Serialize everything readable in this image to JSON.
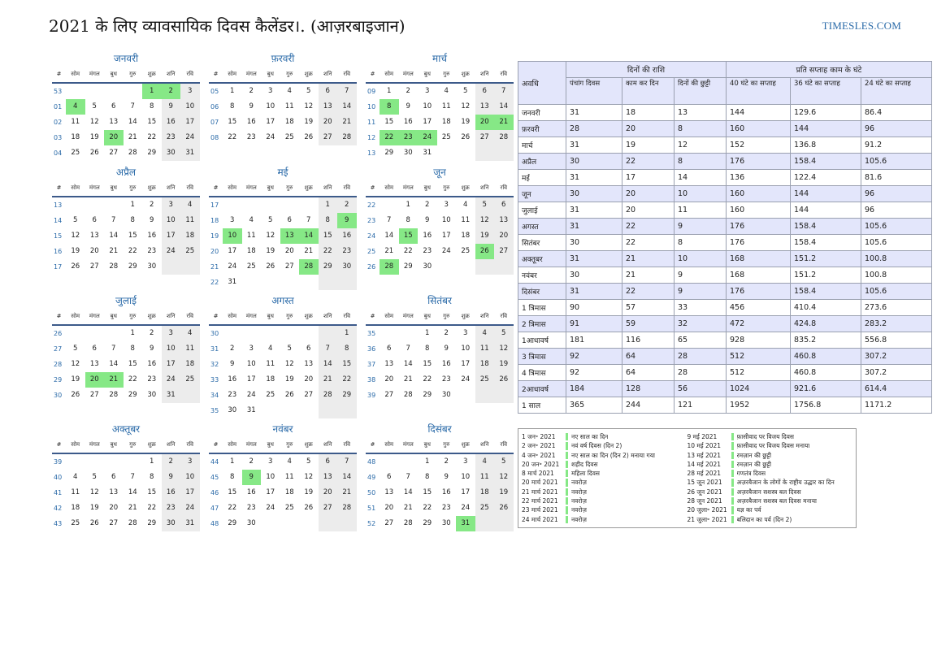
{
  "header": {
    "title": "2021 के लिए व्यावसायिक दिवस कैलेंडर।. (आज़रबाइजान)",
    "site": "TIMESLES.COM"
  },
  "calendar": {
    "weekday_headers": [
      "#",
      "सोम",
      "मंगल",
      "बुध",
      "गुरु",
      "शुक्र",
      "शनि",
      "रवि"
    ],
    "colors": {
      "holiday": "#86e886",
      "weekend": "#ececec",
      "week_number": "#2a6aa8",
      "header_rule": "#3c5a8a"
    },
    "months": [
      {
        "name": "जनवरी",
        "weeks": [
          {
            "no": "53",
            "days": [
              "",
              "",
              "",
              "",
              "1",
              "2",
              "3"
            ],
            "holidays": [
              "1",
              "2"
            ]
          },
          {
            "no": "01",
            "days": [
              "4",
              "5",
              "6",
              "7",
              "8",
              "9",
              "10"
            ],
            "holidays": [
              "4"
            ]
          },
          {
            "no": "02",
            "days": [
              "11",
              "12",
              "13",
              "14",
              "15",
              "16",
              "17"
            ]
          },
          {
            "no": "03",
            "days": [
              "18",
              "19",
              "20",
              "21",
              "22",
              "23",
              "24"
            ],
            "holidays": [
              "20"
            ]
          },
          {
            "no": "04",
            "days": [
              "25",
              "26",
              "27",
              "28",
              "29",
              "30",
              "31"
            ]
          }
        ]
      },
      {
        "name": "फ़रवरी",
        "weeks": [
          {
            "no": "05",
            "days": [
              "1",
              "2",
              "3",
              "4",
              "5",
              "6",
              "7"
            ]
          },
          {
            "no": "06",
            "days": [
              "8",
              "9",
              "10",
              "11",
              "12",
              "13",
              "14"
            ]
          },
          {
            "no": "07",
            "days": [
              "15",
              "16",
              "17",
              "18",
              "19",
              "20",
              "21"
            ]
          },
          {
            "no": "08",
            "days": [
              "22",
              "23",
              "24",
              "25",
              "26",
              "27",
              "28"
            ]
          }
        ]
      },
      {
        "name": "मार्च",
        "weeks": [
          {
            "no": "09",
            "days": [
              "1",
              "2",
              "3",
              "4",
              "5",
              "6",
              "7"
            ]
          },
          {
            "no": "10",
            "days": [
              "8",
              "9",
              "10",
              "11",
              "12",
              "13",
              "14"
            ],
            "holidays": [
              "8"
            ]
          },
          {
            "no": "11",
            "days": [
              "15",
              "16",
              "17",
              "18",
              "19",
              "20",
              "21"
            ],
            "holidays": [
              "20",
              "21"
            ]
          },
          {
            "no": "12",
            "days": [
              "22",
              "23",
              "24",
              "25",
              "26",
              "27",
              "28"
            ],
            "holidays": [
              "22",
              "23",
              "24"
            ]
          },
          {
            "no": "13",
            "days": [
              "29",
              "30",
              "31",
              "",
              "",
              "",
              ""
            ]
          }
        ]
      },
      {
        "name": "अप्रैल",
        "weeks": [
          {
            "no": "13",
            "days": [
              "",
              "",
              "",
              "1",
              "2",
              "3",
              "4"
            ]
          },
          {
            "no": "14",
            "days": [
              "5",
              "6",
              "7",
              "8",
              "9",
              "10",
              "11"
            ]
          },
          {
            "no": "15",
            "days": [
              "12",
              "13",
              "14",
              "15",
              "16",
              "17",
              "18"
            ]
          },
          {
            "no": "16",
            "days": [
              "19",
              "20",
              "21",
              "22",
              "23",
              "24",
              "25"
            ]
          },
          {
            "no": "17",
            "days": [
              "26",
              "27",
              "28",
              "29",
              "30",
              "",
              ""
            ]
          }
        ]
      },
      {
        "name": "मई",
        "weeks": [
          {
            "no": "17",
            "days": [
              "",
              "",
              "",
              "",
              "",
              "1",
              "2"
            ]
          },
          {
            "no": "18",
            "days": [
              "3",
              "4",
              "5",
              "6",
              "7",
              "8",
              "9"
            ],
            "holidays": [
              "9"
            ]
          },
          {
            "no": "19",
            "days": [
              "10",
              "11",
              "12",
              "13",
              "14",
              "15",
              "16"
            ],
            "holidays": [
              "10",
              "13",
              "14"
            ]
          },
          {
            "no": "20",
            "days": [
              "17",
              "18",
              "19",
              "20",
              "21",
              "22",
              "23"
            ]
          },
          {
            "no": "21",
            "days": [
              "24",
              "25",
              "26",
              "27",
              "28",
              "29",
              "30"
            ],
            "holidays": [
              "28"
            ]
          },
          {
            "no": "22",
            "days": [
              "31",
              "",
              "",
              "",
              "",
              "",
              ""
            ]
          }
        ]
      },
      {
        "name": "जून",
        "weeks": [
          {
            "no": "22",
            "days": [
              "",
              "1",
              "2",
              "3",
              "4",
              "5",
              "6"
            ]
          },
          {
            "no": "23",
            "days": [
              "7",
              "8",
              "9",
              "10",
              "11",
              "12",
              "13"
            ]
          },
          {
            "no": "24",
            "days": [
              "14",
              "15",
              "16",
              "17",
              "18",
              "19",
              "20"
            ],
            "holidays": [
              "15"
            ]
          },
          {
            "no": "25",
            "days": [
              "21",
              "22",
              "23",
              "24",
              "25",
              "26",
              "27"
            ],
            "holidays": [
              "26"
            ]
          },
          {
            "no": "26",
            "days": [
              "28",
              "29",
              "30",
              "",
              "",
              "",
              ""
            ],
            "holidays": [
              "28"
            ]
          }
        ]
      },
      {
        "name": "जुलाई",
        "weeks": [
          {
            "no": "26",
            "days": [
              "",
              "",
              "",
              "1",
              "2",
              "3",
              "4"
            ]
          },
          {
            "no": "27",
            "days": [
              "5",
              "6",
              "7",
              "8",
              "9",
              "10",
              "11"
            ]
          },
          {
            "no": "28",
            "days": [
              "12",
              "13",
              "14",
              "15",
              "16",
              "17",
              "18"
            ]
          },
          {
            "no": "29",
            "days": [
              "19",
              "20",
              "21",
              "22",
              "23",
              "24",
              "25"
            ],
            "holidays": [
              "20",
              "21"
            ]
          },
          {
            "no": "30",
            "days": [
              "26",
              "27",
              "28",
              "29",
              "30",
              "31",
              ""
            ]
          }
        ]
      },
      {
        "name": "अगस्त",
        "weeks": [
          {
            "no": "30",
            "days": [
              "",
              "",
              "",
              "",
              "",
              "",
              "1"
            ]
          },
          {
            "no": "31",
            "days": [
              "2",
              "3",
              "4",
              "5",
              "6",
              "7",
              "8"
            ]
          },
          {
            "no": "32",
            "days": [
              "9",
              "10",
              "11",
              "12",
              "13",
              "14",
              "15"
            ]
          },
          {
            "no": "33",
            "days": [
              "16",
              "17",
              "18",
              "19",
              "20",
              "21",
              "22"
            ]
          },
          {
            "no": "34",
            "days": [
              "23",
              "24",
              "25",
              "26",
              "27",
              "28",
              "29"
            ]
          },
          {
            "no": "35",
            "days": [
              "30",
              "31",
              "",
              "",
              "",
              "",
              ""
            ]
          }
        ]
      },
      {
        "name": "सितंबर",
        "weeks": [
          {
            "no": "35",
            "days": [
              "",
              "",
              "1",
              "2",
              "3",
              "4",
              "5"
            ]
          },
          {
            "no": "36",
            "days": [
              "6",
              "7",
              "8",
              "9",
              "10",
              "11",
              "12"
            ]
          },
          {
            "no": "37",
            "days": [
              "13",
              "14",
              "15",
              "16",
              "17",
              "18",
              "19"
            ]
          },
          {
            "no": "38",
            "days": [
              "20",
              "21",
              "22",
              "23",
              "24",
              "25",
              "26"
            ]
          },
          {
            "no": "39",
            "days": [
              "27",
              "28",
              "29",
              "30",
              "",
              "",
              ""
            ]
          }
        ]
      },
      {
        "name": "अक्तूबर",
        "weeks": [
          {
            "no": "39",
            "days": [
              "",
              "",
              "",
              "",
              "1",
              "2",
              "3"
            ]
          },
          {
            "no": "40",
            "days": [
              "4",
              "5",
              "6",
              "7",
              "8",
              "9",
              "10"
            ]
          },
          {
            "no": "41",
            "days": [
              "11",
              "12",
              "13",
              "14",
              "15",
              "16",
              "17"
            ]
          },
          {
            "no": "42",
            "days": [
              "18",
              "19",
              "20",
              "21",
              "22",
              "23",
              "24"
            ]
          },
          {
            "no": "43",
            "days": [
              "25",
              "26",
              "27",
              "28",
              "29",
              "30",
              "31"
            ]
          }
        ]
      },
      {
        "name": "नवंबर",
        "weeks": [
          {
            "no": "44",
            "days": [
              "1",
              "2",
              "3",
              "4",
              "5",
              "6",
              "7"
            ]
          },
          {
            "no": "45",
            "days": [
              "8",
              "9",
              "10",
              "11",
              "12",
              "13",
              "14"
            ],
            "holidays": [
              "9"
            ]
          },
          {
            "no": "46",
            "days": [
              "15",
              "16",
              "17",
              "18",
              "19",
              "20",
              "21"
            ]
          },
          {
            "no": "47",
            "days": [
              "22",
              "23",
              "24",
              "25",
              "26",
              "27",
              "28"
            ]
          },
          {
            "no": "48",
            "days": [
              "29",
              "30",
              "",
              "",
              "",
              "",
              ""
            ]
          }
        ]
      },
      {
        "name": "दिसंबर",
        "weeks": [
          {
            "no": "48",
            "days": [
              "",
              "",
              "1",
              "2",
              "3",
              "4",
              "5"
            ]
          },
          {
            "no": "49",
            "days": [
              "6",
              "7",
              "8",
              "9",
              "10",
              "11",
              "12"
            ]
          },
          {
            "no": "50",
            "days": [
              "13",
              "14",
              "15",
              "16",
              "17",
              "18",
              "19"
            ]
          },
          {
            "no": "51",
            "days": [
              "20",
              "21",
              "22",
              "23",
              "24",
              "25",
              "26"
            ]
          },
          {
            "no": "52",
            "days": [
              "27",
              "28",
              "29",
              "30",
              "31",
              "",
              ""
            ]
          }
        ],
        "holidays_extra": [
          "31"
        ]
      }
    ]
  },
  "summary": {
    "period_header": "अवधि",
    "days_group": "दिनों की राशि",
    "hours_group": "प्रति सप्ताह काम के घंटे",
    "sub_headers": [
      "पंचांग दिवस",
      "काम कर दिन",
      "दिनों की छुट्टी",
      "40 घंटे का सप्ताह",
      "36 घंटे का सप्ताह",
      "24 घंटे का सप्ताह"
    ],
    "rows": [
      [
        "जनवरी",
        "31",
        "18",
        "13",
        "144",
        "129.6",
        "86.4"
      ],
      [
        "फ़रवरी",
        "28",
        "20",
        "8",
        "160",
        "144",
        "96"
      ],
      [
        "मार्च",
        "31",
        "19",
        "12",
        "152",
        "136.8",
        "91.2"
      ],
      [
        "अप्रैल",
        "30",
        "22",
        "8",
        "176",
        "158.4",
        "105.6"
      ],
      [
        "मई",
        "31",
        "17",
        "14",
        "136",
        "122.4",
        "81.6"
      ],
      [
        "जून",
        "30",
        "20",
        "10",
        "160",
        "144",
        "96"
      ],
      [
        "जुलाई",
        "31",
        "20",
        "11",
        "160",
        "144",
        "96"
      ],
      [
        "अगस्त",
        "31",
        "22",
        "9",
        "176",
        "158.4",
        "105.6"
      ],
      [
        "सितंबर",
        "30",
        "22",
        "8",
        "176",
        "158.4",
        "105.6"
      ],
      [
        "अक्तूबर",
        "31",
        "21",
        "10",
        "168",
        "151.2",
        "100.8"
      ],
      [
        "नवंबर",
        "30",
        "21",
        "9",
        "168",
        "151.2",
        "100.8"
      ],
      [
        "दिसंबर",
        "31",
        "22",
        "9",
        "176",
        "158.4",
        "105.6"
      ],
      [
        "1 त्रिमास",
        "90",
        "57",
        "33",
        "456",
        "410.4",
        "273.6"
      ],
      [
        "2 त्रिमास",
        "91",
        "59",
        "32",
        "472",
        "424.8",
        "283.2"
      ],
      [
        "1आधावर्ष",
        "181",
        "116",
        "65",
        "928",
        "835.2",
        "556.8"
      ],
      [
        "3 त्रिमास",
        "92",
        "64",
        "28",
        "512",
        "460.8",
        "307.2"
      ],
      [
        "4 त्रिमास",
        "92",
        "64",
        "28",
        "512",
        "460.8",
        "307.2"
      ],
      [
        "2आधावर्ष",
        "184",
        "128",
        "56",
        "1024",
        "921.6",
        "614.4"
      ],
      [
        "1 साल",
        "365",
        "244",
        "121",
        "1952",
        "1756.8",
        "1171.2"
      ]
    ]
  },
  "holidays": {
    "left": [
      [
        "1 जन॰ 2021",
        "नए साल का दिन"
      ],
      [
        "2 जन॰ 2021",
        "नवं वर्ष दिवस (दिन 2)"
      ],
      [
        "4 जन॰ 2021",
        "नए साल का दिन (दिन 2) मनाया गया"
      ],
      [
        "20 जन॰ 2021",
        "शहीद दिवस"
      ],
      [
        "8 मार्च 2021",
        "महिला दिवस"
      ],
      [
        "20 मार्च 2021",
        "नवरोज़"
      ],
      [
        "21 मार्च 2021",
        "नवरोज़"
      ],
      [
        "22 मार्च 2021",
        "नवरोज़"
      ],
      [
        "23 मार्च 2021",
        "नवरोज़"
      ],
      [
        "24 मार्च 2021",
        "नवरोज़"
      ]
    ],
    "right": [
      [
        "9 मई 2021",
        "फ़ासीवाद पर विजय दिवस"
      ],
      [
        "10 मई 2021",
        "फ़ासीवाद पर विजय दिवस मनाया"
      ],
      [
        "13 मई 2021",
        "रमज़ान की छुट्टी"
      ],
      [
        "14 मई 2021",
        "रमज़ान की छुट्टी"
      ],
      [
        "28 मई 2021",
        "गणतंत्र दिवस"
      ],
      [
        "15 जून 2021",
        "अज़रबैजान के लोगों के राष्ट्रीय उद्धार का दिन"
      ],
      [
        "26 जून 2021",
        "अज़रबैजान सशस्त्र बल दिवस"
      ],
      [
        "28 जून 2021",
        "अज़रबैजान सशस्त्र बल दिवस मनाया"
      ],
      [
        "20 जुला॰ 2021",
        "यज्ञ का पर्व"
      ],
      [
        "21 जुला॰ 2021",
        "बलिदान का पर्व (दिन 2)"
      ]
    ]
  }
}
